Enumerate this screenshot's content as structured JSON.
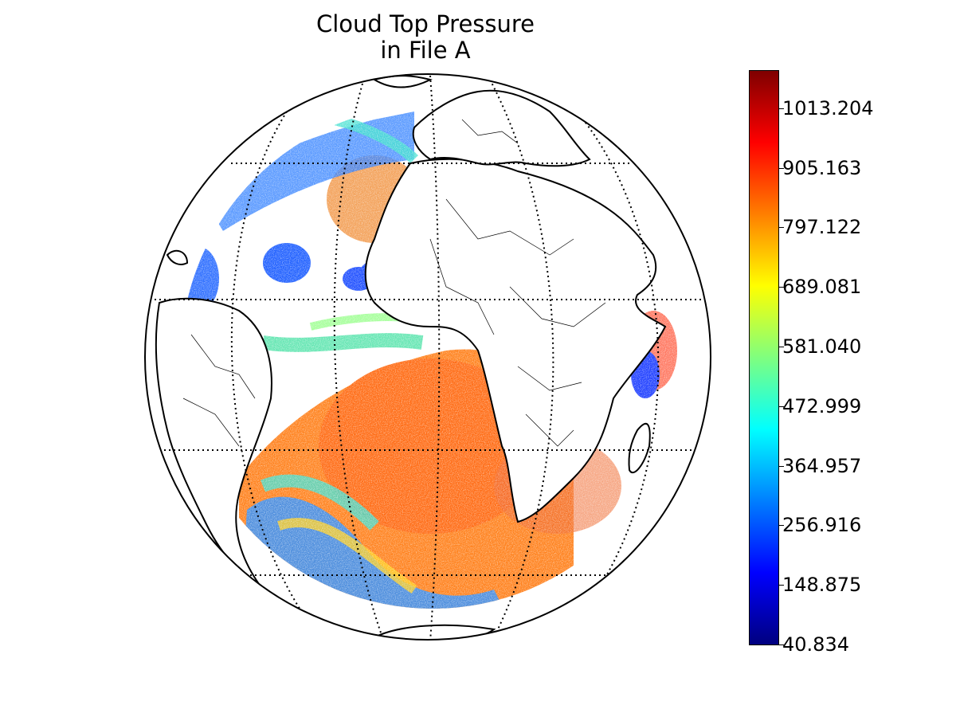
{
  "title_line1": "Cloud Top Pressure",
  "title_line2": "in File A",
  "colorbar": {
    "colormap": "jet",
    "min": 40.834,
    "max": 1081.0,
    "tick_labels": [
      "1013.204",
      "905.163",
      "797.122",
      "689.081",
      "581.040",
      "472.999",
      "364.957",
      "256.916",
      "148.875",
      "40.834"
    ],
    "tick_values": [
      1013.204,
      905.163,
      797.122,
      689.081,
      581.04,
      472.999,
      364.957,
      256.916,
      148.875,
      40.834
    ]
  },
  "map": {
    "projection": "orthographic",
    "graticule": "dotted",
    "colors": {
      "deep_convection": "#1f4fff",
      "mid_cloud": "#37e0b5",
      "low_cloud": "#ff7a10",
      "high_pressure": "#e02010"
    }
  }
}
